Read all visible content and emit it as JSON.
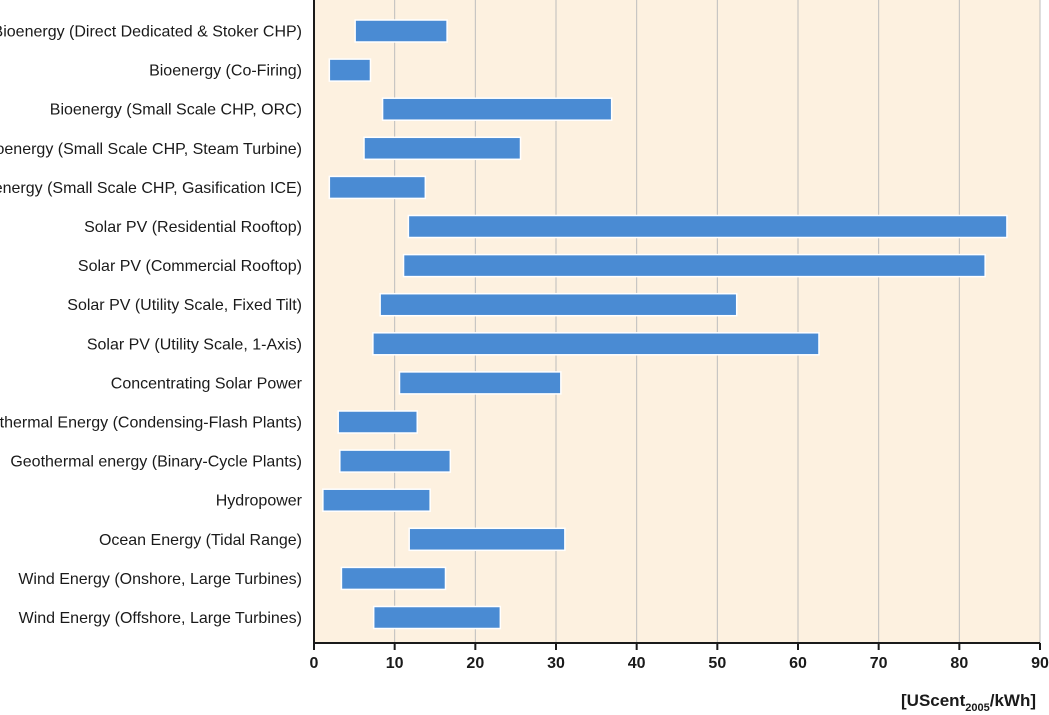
{
  "chart_data": {
    "type": "bar",
    "orientation": "horizontal",
    "style": "floating-range",
    "categories": [
      "Bioenergy (Direct Dedicated & Stoker CHP)",
      "Bioenergy (Co-Firing)",
      "Bioenergy (Small Scale CHP, ORC)",
      "Bioenergy (Small Scale CHP, Steam Turbine)",
      "Bioenergy (Small Scale CHP, Gasification ICE)",
      "Solar PV (Residential Rooftop)",
      "Solar PV (Commercial Rooftop)",
      "Solar PV (Utility Scale, Fixed Tilt)",
      "Solar PV (Utility Scale, 1-Axis)",
      "Concentrating Solar Power",
      "Geothermal Energy (Condensing-Flash Plants)",
      "Geothermal energy (Binary-Cycle Plants)",
      "Hydropower",
      "Ocean Energy (Tidal Range)",
      "Wind Energy (Onshore, Large Turbines)",
      "Wind Energy (Offshore, Large Turbines)"
    ],
    "ranges": [
      [
        5.1,
        16.5
      ],
      [
        1.9,
        7.0
      ],
      [
        8.5,
        36.9
      ],
      [
        6.2,
        25.6
      ],
      [
        1.9,
        13.8
      ],
      [
        11.7,
        85.9
      ],
      [
        11.1,
        83.2
      ],
      [
        8.2,
        52.4
      ],
      [
        7.3,
        62.6
      ],
      [
        10.6,
        30.6
      ],
      [
        3.0,
        12.8
      ],
      [
        3.2,
        16.9
      ],
      [
        1.1,
        14.4
      ],
      [
        11.8,
        31.1
      ],
      [
        3.4,
        16.3
      ],
      [
        7.4,
        23.1
      ]
    ],
    "xlim": [
      0,
      90
    ],
    "xticks": [
      0,
      10,
      20,
      30,
      40,
      50,
      60,
      70,
      80,
      90
    ],
    "xlabel": {
      "prefix": "[UScent",
      "subscript": "2005",
      "suffix": "/kWh]"
    },
    "grid": true,
    "colors": {
      "plot_background": "#fdf1e0",
      "bar_fill": "#4a8bd3",
      "bar_stroke": "#ffffff",
      "gridline": "#bdbdbd",
      "axis": "#1a1a1a"
    }
  }
}
